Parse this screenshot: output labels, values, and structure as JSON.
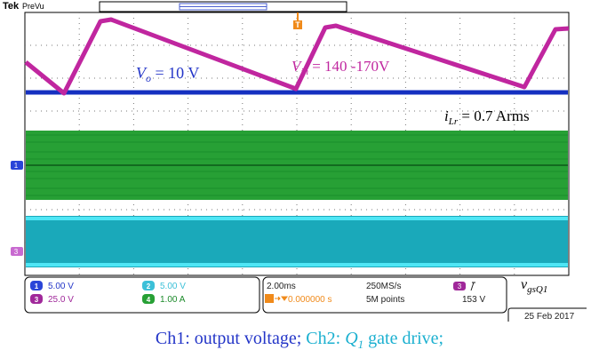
{
  "header": {
    "brand": "Tek",
    "mode": "PreVu",
    "trigger_marker": "T"
  },
  "annotations": {
    "vo": {
      "symbol": "V",
      "sub": "o",
      "text": " = 10 V"
    },
    "vin": {
      "symbol": "V",
      "sub": "in",
      "text": " = 140 -170V"
    },
    "ilr": {
      "symbol": "i",
      "sub": "Lr",
      "text": " = 0.7 Arms"
    },
    "vgs": {
      "symbol": "v",
      "sub": "gsQ1"
    }
  },
  "channel_markers": [
    "1",
    "3"
  ],
  "readout": {
    "channels": [
      {
        "id": "1",
        "scale": "5.00 V"
      },
      {
        "id": "2",
        "scale": "5.00 V"
      },
      {
        "id": "3",
        "scale": "25.0 V"
      },
      {
        "id": "4",
        "scale": "1.00 A"
      }
    ],
    "timebase": "2.00ms",
    "sample_rate": "250MS/s",
    "position": "0.000000 s",
    "record": "5M points",
    "trigger_source": "3",
    "trigger_level": "153 V",
    "date": "25 Feb 2017"
  },
  "caption": {
    "line1": [
      {
        "text": "Ch1: output voltage; ",
        "color": "#2436c8"
      },
      {
        "text": "Ch2: ",
        "color": "#1cb0d0"
      },
      {
        "text": "Q",
        "color": "#1cb0d0",
        "italic": true
      },
      {
        "text": "1",
        "color": "#1cb0d0",
        "italic": true,
        "sub": true
      },
      {
        "text": " gate drive;",
        "color": "#1cb0d0"
      }
    ]
  }
}
